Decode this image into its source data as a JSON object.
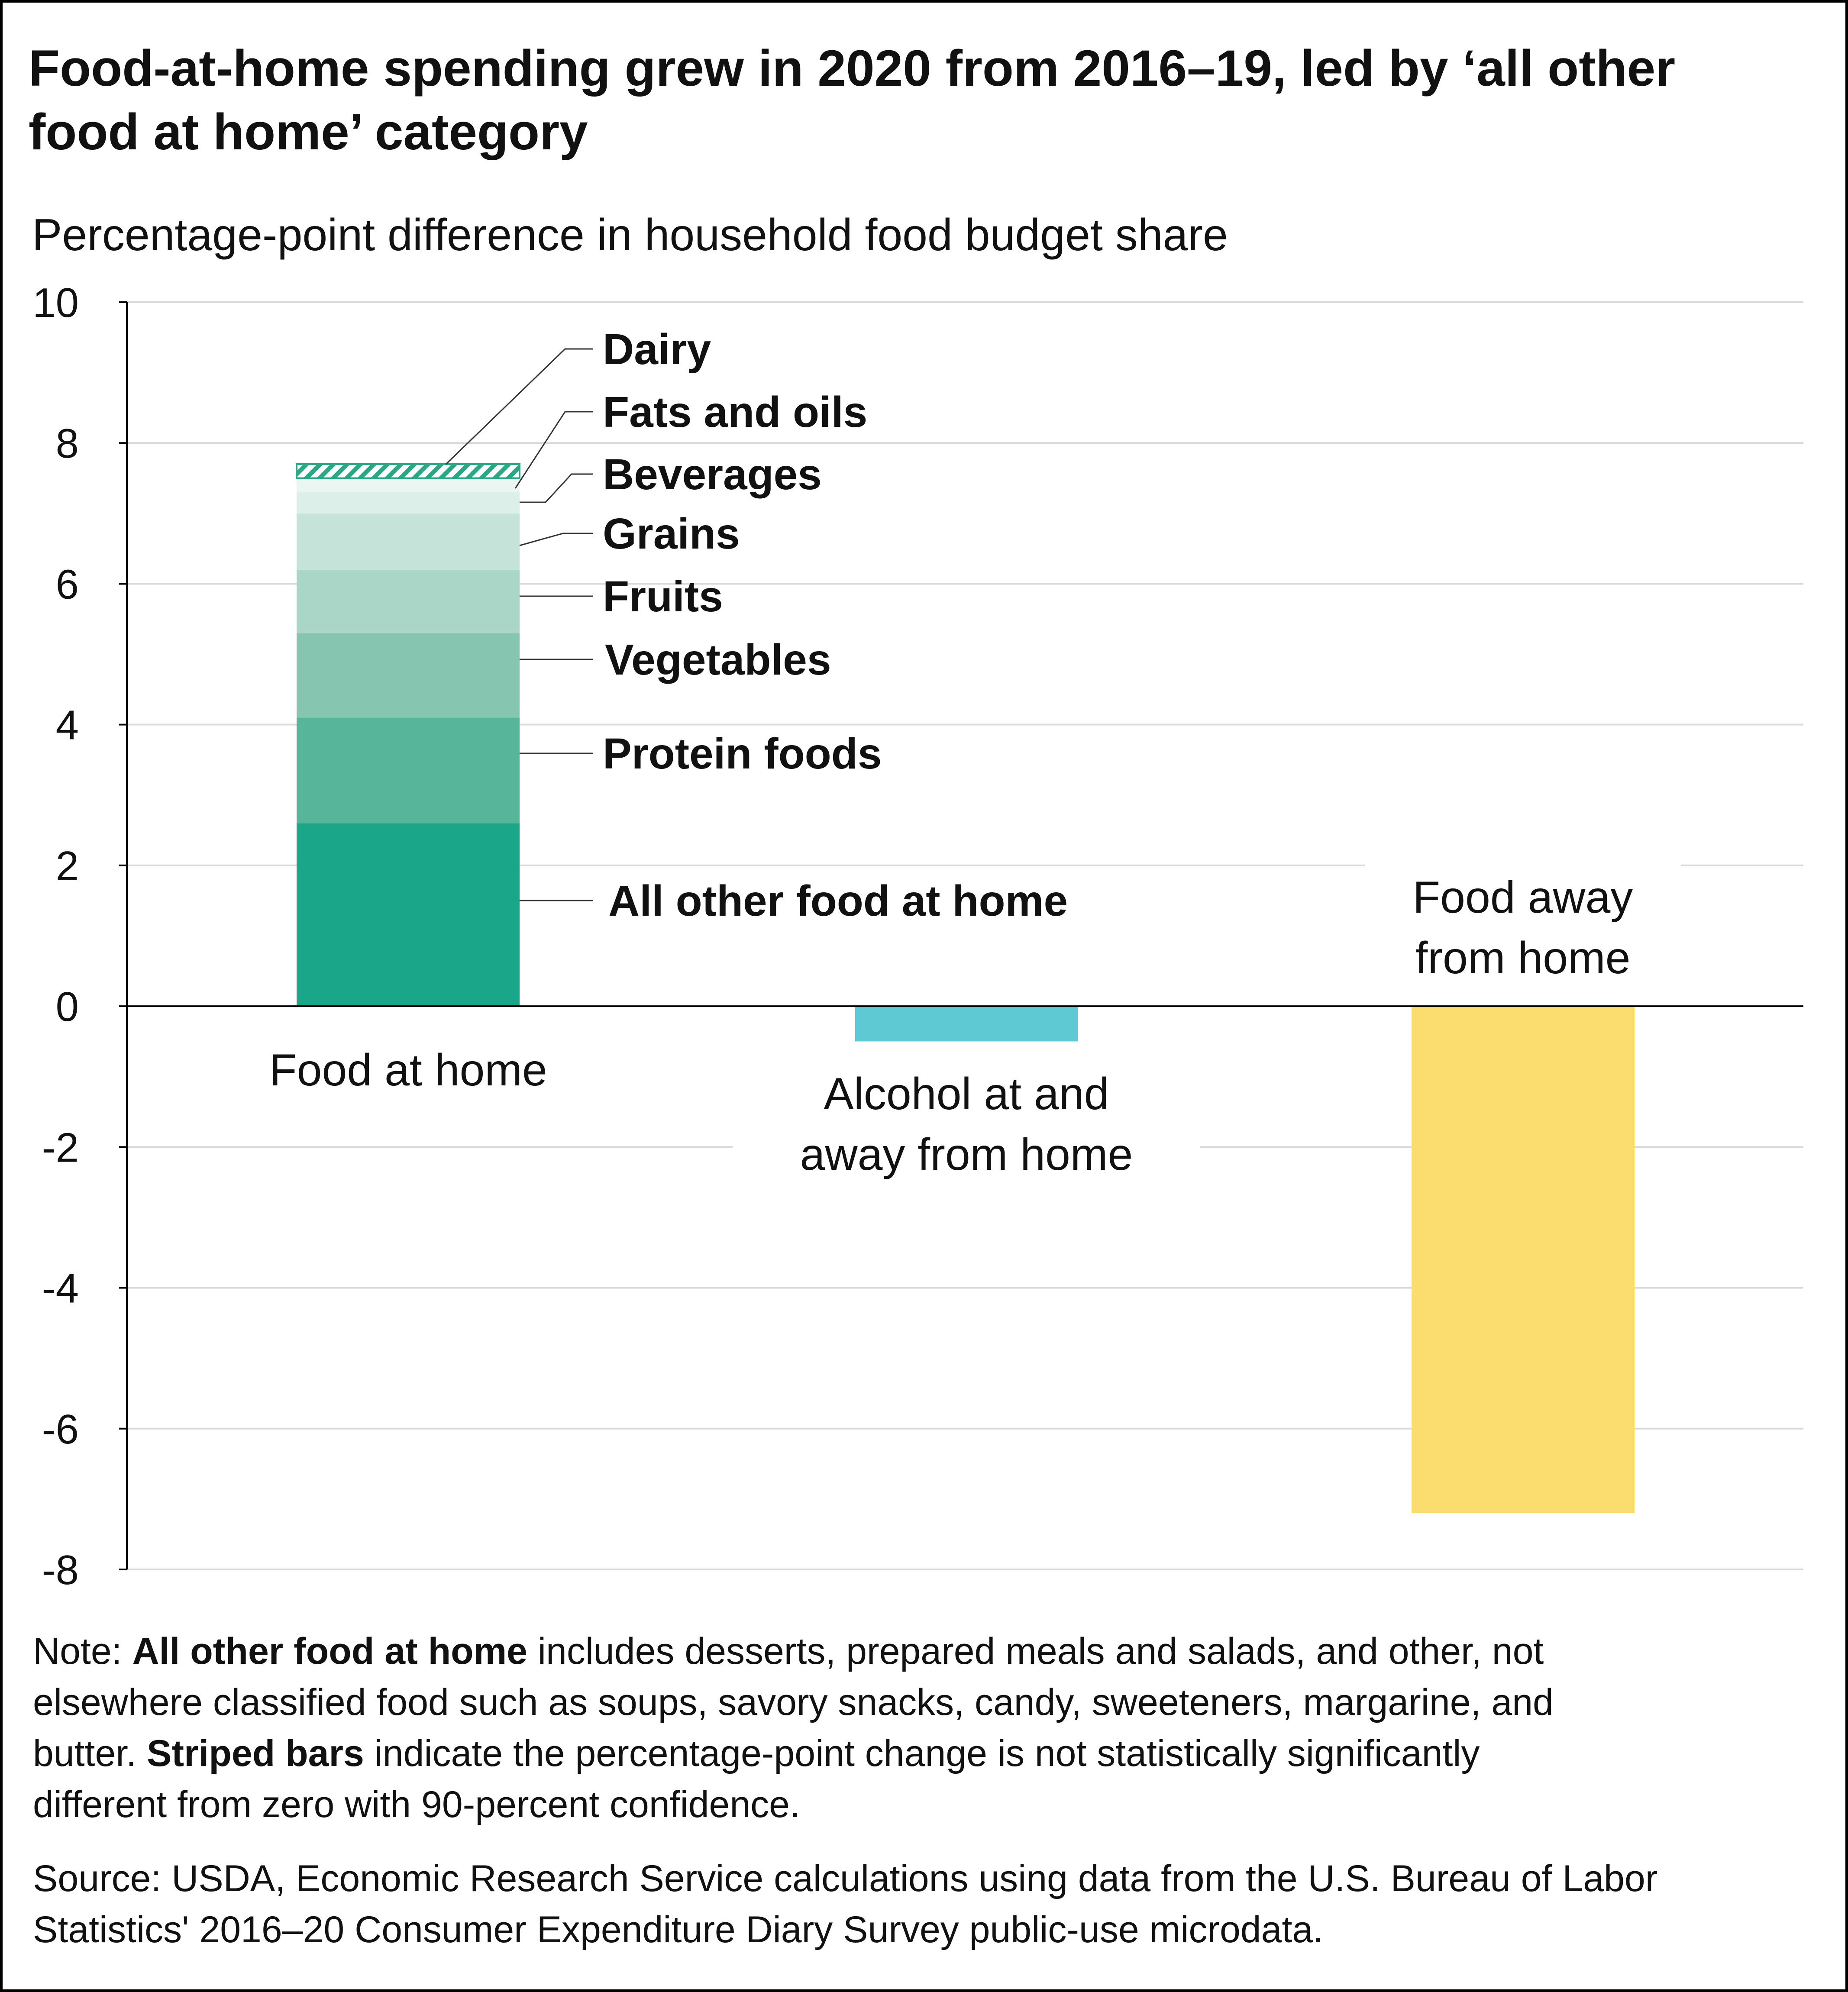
{
  "title": {
    "line1": "Food-at-home spending grew in 2020 from 2016–19, led by ‘all other",
    "line2": "food at home’ category"
  },
  "subtitle": "Percentage-point difference in household food budget share",
  "note": {
    "prefix": "Note: ",
    "bold1": "All other food at home",
    "text1": " includes desserts, prepared meals and salads, and other, not",
    "line2": "elsewhere classified food such as soups, savory snacks, candy, sweeteners, margarine, and",
    "line3_pre": "butter. ",
    "bold2": "Striped bars",
    "line3_post": " indicate the percentage-point change is not statistically significantly",
    "line4": "different from zero with 90-percent confidence."
  },
  "source": {
    "line1": "Source: USDA, Economic Research Service calculations using data from the U.S. Bureau of Labor",
    "line2": "Statistics' 2016–20 Consumer Expenditure Diary Survey public-use microdata."
  },
  "colors": {
    "all_other": "#1aa688",
    "protein": "#57b59a",
    "vegetables": "#86c6b1",
    "fruits": "#a9d6c6",
    "grains": "#c5e3d8",
    "beverages": "#dcefe8",
    "fats": "#ebf6f2",
    "dairy_stripe": "#2aa886",
    "alcohol": "#5ec8d3",
    "food_away": "#fbdc6e",
    "grid": "#d9d9d9",
    "axis": "#000000"
  },
  "chart_data": {
    "type": "bar",
    "stacked": true,
    "ylim": [
      -8,
      10
    ],
    "yticks": [
      "10",
      "8",
      "6",
      "4",
      "2",
      "0",
      "-2",
      "-4",
      "-6",
      "-8"
    ],
    "ylabel": "Percentage-point difference in household food budget share",
    "grid": true,
    "categories": [
      "Food at home",
      "Alcohol at and away from home",
      "Food away from home"
    ],
    "category_label_lines": [
      [
        "Food at home"
      ],
      [
        "Alcohol at and",
        "away from home"
      ],
      [
        "Food away",
        "from home"
      ]
    ],
    "food_at_home_segments": [
      {
        "name": "All other food at home",
        "value": 2.6,
        "striped": false
      },
      {
        "name": "Protein foods",
        "value": 1.5,
        "striped": false
      },
      {
        "name": "Vegetables",
        "value": 1.2,
        "striped": false
      },
      {
        "name": "Fruits",
        "value": 0.9,
        "striped": false
      },
      {
        "name": "Grains",
        "value": 0.8,
        "striped": false
      },
      {
        "name": "Beverages",
        "value": 0.3,
        "striped": false
      },
      {
        "name": "Fats and oils",
        "value": 0.2,
        "striped": false
      },
      {
        "name": "Dairy",
        "value": 0.2,
        "striped": true
      }
    ],
    "alcohol_value": -0.5,
    "food_away_value": -7.2
  }
}
